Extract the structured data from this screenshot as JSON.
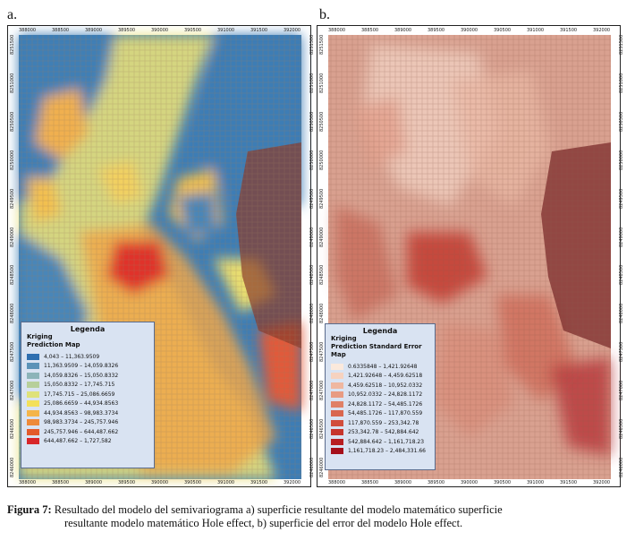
{
  "panel_a": {
    "letter": "a.",
    "x_ticks": [
      "388000",
      "388500",
      "389000",
      "389500",
      "390000",
      "390500",
      "391000",
      "391500",
      "392000"
    ],
    "y_ticks": [
      "8251500",
      "8251000",
      "8250500",
      "8250000",
      "8249500",
      "8249000",
      "8248500",
      "8248000",
      "8247500",
      "8247000",
      "8246500",
      "8246000"
    ],
    "legend": {
      "title": "Legenda",
      "subtitle1": "Kriging",
      "subtitle2": "Prediction Map",
      "items": [
        {
          "label": "4,043 – 11,363.9509",
          "color": "#2f6fb0"
        },
        {
          "label": "11,363.9509 – 14,059.8326",
          "color": "#5b93b8"
        },
        {
          "label": "14,059.8326 – 15,050.8332",
          "color": "#8cb4b9"
        },
        {
          "label": "15,050.8332 – 17,745.715",
          "color": "#b7cf9a"
        },
        {
          "label": "17,745.715 – 25,086.6659",
          "color": "#dfe27a"
        },
        {
          "label": "25,086.6659 – 44,934.8563",
          "color": "#f3e05a"
        },
        {
          "label": "44,934.8563 – 98,983.3734",
          "color": "#f4b54a"
        },
        {
          "label": "98,983.3734 – 245,757.946",
          "color": "#ee8a3a"
        },
        {
          "label": "245,757.946 – 644,487.662",
          "color": "#e35a2c"
        },
        {
          "label": "644,487.662 – 1,727,582",
          "color": "#d8262a"
        }
      ]
    }
  },
  "panel_b": {
    "letter": "b.",
    "x_ticks": [
      "388000",
      "388500",
      "389000",
      "389500",
      "390000",
      "390500",
      "391000",
      "391500",
      "392000"
    ],
    "y_ticks": [
      "8251500",
      "8251000",
      "8250500",
      "8250000",
      "8249500",
      "8249000",
      "8248500",
      "8248000",
      "8247500",
      "8247000",
      "8246500",
      "8246000"
    ],
    "legend": {
      "title": "Legenda",
      "subtitle1": "Kriging",
      "subtitle2": "Prediction Standard Error Map",
      "items": [
        {
          "label": "0.6335848 – 1,421.92648",
          "color": "#fbe9dc"
        },
        {
          "label": "1,421.92648 – 4,459.62518",
          "color": "#f6d2bf"
        },
        {
          "label": "4,459.62518 – 10,952.0332",
          "color": "#efb7a0"
        },
        {
          "label": "10,952.0332 – 24,828.1172",
          "color": "#e89b82"
        },
        {
          "label": "24,828.1172 – 54,485.1726",
          "color": "#e08066"
        },
        {
          "label": "54,485.1726 – 117,870.559",
          "color": "#d9664e"
        },
        {
          "label": "117,870.559 – 253,342.78",
          "color": "#d14d3c"
        },
        {
          "label": "253,342.78 – 542,884.642",
          "color": "#c6352d"
        },
        {
          "label": "542,884.642 – 1,161,718.23",
          "color": "#b81f22"
        },
        {
          "label": "1,161,718.23 – 2,484,331.66",
          "color": "#a50f1a"
        }
      ]
    }
  },
  "caption": {
    "label": "Figura 7:",
    "line1": "Resultado del modelo del semivariograma a) superficie resultante del modelo matemático superficie",
    "line2": "resultante modelo matemático Hole effect, b) superficie del error del modelo Hole effect."
  }
}
